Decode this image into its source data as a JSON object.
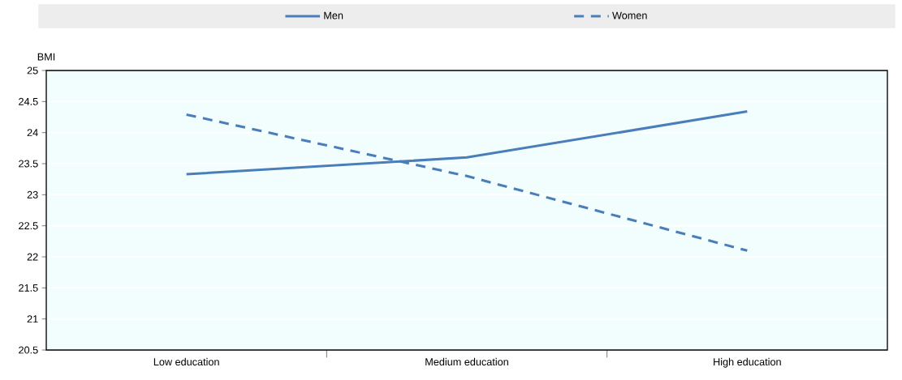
{
  "chart_data": {
    "type": "line",
    "ylabel": "BMI",
    "categories": [
      "Low education",
      "Medium education",
      "High education"
    ],
    "series": [
      {
        "name": "Men",
        "color": "#4a7ebb",
        "line_style": "solid",
        "values": [
          23.33,
          23.6,
          24.34
        ]
      },
      {
        "name": "Women",
        "color": "#4a7ebb",
        "line_style": "dashed",
        "values": [
          24.29,
          23.3,
          22.1
        ]
      }
    ],
    "ylim": [
      20.5,
      25
    ],
    "yticks": [
      20.5,
      21,
      21.5,
      22,
      22.5,
      23,
      23.5,
      24,
      24.5,
      25
    ],
    "grid": "y",
    "legend": "top",
    "marker": "none"
  }
}
